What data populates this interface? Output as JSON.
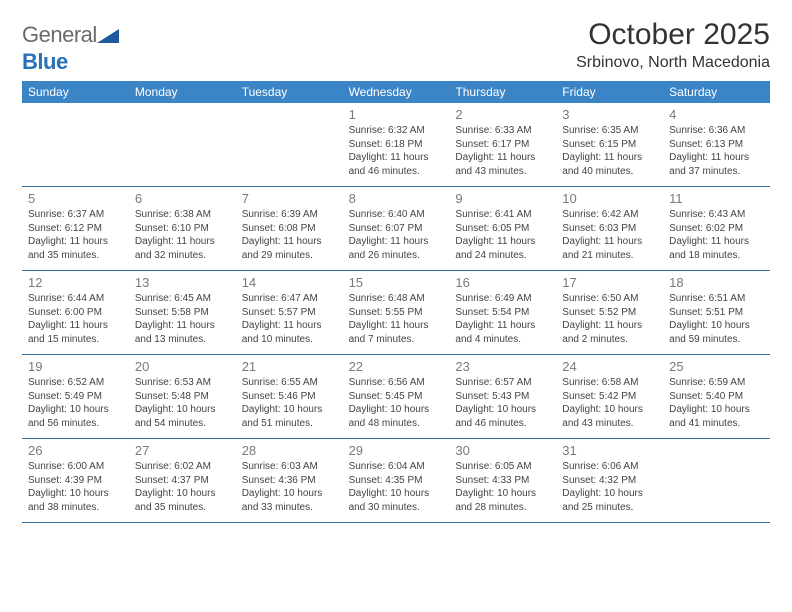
{
  "logo": {
    "text_general": "General",
    "text_blue": "Blue"
  },
  "title": {
    "month": "October 2025",
    "location": "Srbinovo, North Macedonia"
  },
  "colors": {
    "header_bg": "#3b85c6",
    "header_text": "#ffffff",
    "border": "#3b6fa0",
    "daynum": "#7a7a7a",
    "body_text": "#444444",
    "logo_gray": "#6b6b6b",
    "logo_blue": "#2a71b8",
    "logo_triangle": "#1d5a9e"
  },
  "day_names": [
    "Sunday",
    "Monday",
    "Tuesday",
    "Wednesday",
    "Thursday",
    "Friday",
    "Saturday"
  ],
  "weeks": [
    [
      {
        "day": "",
        "sunrise": "",
        "sunset": "",
        "daylight": ""
      },
      {
        "day": "",
        "sunrise": "",
        "sunset": "",
        "daylight": ""
      },
      {
        "day": "",
        "sunrise": "",
        "sunset": "",
        "daylight": ""
      },
      {
        "day": "1",
        "sunrise": "Sunrise: 6:32 AM",
        "sunset": "Sunset: 6:18 PM",
        "daylight": "Daylight: 11 hours and 46 minutes."
      },
      {
        "day": "2",
        "sunrise": "Sunrise: 6:33 AM",
        "sunset": "Sunset: 6:17 PM",
        "daylight": "Daylight: 11 hours and 43 minutes."
      },
      {
        "day": "3",
        "sunrise": "Sunrise: 6:35 AM",
        "sunset": "Sunset: 6:15 PM",
        "daylight": "Daylight: 11 hours and 40 minutes."
      },
      {
        "day": "4",
        "sunrise": "Sunrise: 6:36 AM",
        "sunset": "Sunset: 6:13 PM",
        "daylight": "Daylight: 11 hours and 37 minutes."
      }
    ],
    [
      {
        "day": "5",
        "sunrise": "Sunrise: 6:37 AM",
        "sunset": "Sunset: 6:12 PM",
        "daylight": "Daylight: 11 hours and 35 minutes."
      },
      {
        "day": "6",
        "sunrise": "Sunrise: 6:38 AM",
        "sunset": "Sunset: 6:10 PM",
        "daylight": "Daylight: 11 hours and 32 minutes."
      },
      {
        "day": "7",
        "sunrise": "Sunrise: 6:39 AM",
        "sunset": "Sunset: 6:08 PM",
        "daylight": "Daylight: 11 hours and 29 minutes."
      },
      {
        "day": "8",
        "sunrise": "Sunrise: 6:40 AM",
        "sunset": "Sunset: 6:07 PM",
        "daylight": "Daylight: 11 hours and 26 minutes."
      },
      {
        "day": "9",
        "sunrise": "Sunrise: 6:41 AM",
        "sunset": "Sunset: 6:05 PM",
        "daylight": "Daylight: 11 hours and 24 minutes."
      },
      {
        "day": "10",
        "sunrise": "Sunrise: 6:42 AM",
        "sunset": "Sunset: 6:03 PM",
        "daylight": "Daylight: 11 hours and 21 minutes."
      },
      {
        "day": "11",
        "sunrise": "Sunrise: 6:43 AM",
        "sunset": "Sunset: 6:02 PM",
        "daylight": "Daylight: 11 hours and 18 minutes."
      }
    ],
    [
      {
        "day": "12",
        "sunrise": "Sunrise: 6:44 AM",
        "sunset": "Sunset: 6:00 PM",
        "daylight": "Daylight: 11 hours and 15 minutes."
      },
      {
        "day": "13",
        "sunrise": "Sunrise: 6:45 AM",
        "sunset": "Sunset: 5:58 PM",
        "daylight": "Daylight: 11 hours and 13 minutes."
      },
      {
        "day": "14",
        "sunrise": "Sunrise: 6:47 AM",
        "sunset": "Sunset: 5:57 PM",
        "daylight": "Daylight: 11 hours and 10 minutes."
      },
      {
        "day": "15",
        "sunrise": "Sunrise: 6:48 AM",
        "sunset": "Sunset: 5:55 PM",
        "daylight": "Daylight: 11 hours and 7 minutes."
      },
      {
        "day": "16",
        "sunrise": "Sunrise: 6:49 AM",
        "sunset": "Sunset: 5:54 PM",
        "daylight": "Daylight: 11 hours and 4 minutes."
      },
      {
        "day": "17",
        "sunrise": "Sunrise: 6:50 AM",
        "sunset": "Sunset: 5:52 PM",
        "daylight": "Daylight: 11 hours and 2 minutes."
      },
      {
        "day": "18",
        "sunrise": "Sunrise: 6:51 AM",
        "sunset": "Sunset: 5:51 PM",
        "daylight": "Daylight: 10 hours and 59 minutes."
      }
    ],
    [
      {
        "day": "19",
        "sunrise": "Sunrise: 6:52 AM",
        "sunset": "Sunset: 5:49 PM",
        "daylight": "Daylight: 10 hours and 56 minutes."
      },
      {
        "day": "20",
        "sunrise": "Sunrise: 6:53 AM",
        "sunset": "Sunset: 5:48 PM",
        "daylight": "Daylight: 10 hours and 54 minutes."
      },
      {
        "day": "21",
        "sunrise": "Sunrise: 6:55 AM",
        "sunset": "Sunset: 5:46 PM",
        "daylight": "Daylight: 10 hours and 51 minutes."
      },
      {
        "day": "22",
        "sunrise": "Sunrise: 6:56 AM",
        "sunset": "Sunset: 5:45 PM",
        "daylight": "Daylight: 10 hours and 48 minutes."
      },
      {
        "day": "23",
        "sunrise": "Sunrise: 6:57 AM",
        "sunset": "Sunset: 5:43 PM",
        "daylight": "Daylight: 10 hours and 46 minutes."
      },
      {
        "day": "24",
        "sunrise": "Sunrise: 6:58 AM",
        "sunset": "Sunset: 5:42 PM",
        "daylight": "Daylight: 10 hours and 43 minutes."
      },
      {
        "day": "25",
        "sunrise": "Sunrise: 6:59 AM",
        "sunset": "Sunset: 5:40 PM",
        "daylight": "Daylight: 10 hours and 41 minutes."
      }
    ],
    [
      {
        "day": "26",
        "sunrise": "Sunrise: 6:00 AM",
        "sunset": "Sunset: 4:39 PM",
        "daylight": "Daylight: 10 hours and 38 minutes."
      },
      {
        "day": "27",
        "sunrise": "Sunrise: 6:02 AM",
        "sunset": "Sunset: 4:37 PM",
        "daylight": "Daylight: 10 hours and 35 minutes."
      },
      {
        "day": "28",
        "sunrise": "Sunrise: 6:03 AM",
        "sunset": "Sunset: 4:36 PM",
        "daylight": "Daylight: 10 hours and 33 minutes."
      },
      {
        "day": "29",
        "sunrise": "Sunrise: 6:04 AM",
        "sunset": "Sunset: 4:35 PM",
        "daylight": "Daylight: 10 hours and 30 minutes."
      },
      {
        "day": "30",
        "sunrise": "Sunrise: 6:05 AM",
        "sunset": "Sunset: 4:33 PM",
        "daylight": "Daylight: 10 hours and 28 minutes."
      },
      {
        "day": "31",
        "sunrise": "Sunrise: 6:06 AM",
        "sunset": "Sunset: 4:32 PM",
        "daylight": "Daylight: 10 hours and 25 minutes."
      },
      {
        "day": "",
        "sunrise": "",
        "sunset": "",
        "daylight": ""
      }
    ]
  ]
}
